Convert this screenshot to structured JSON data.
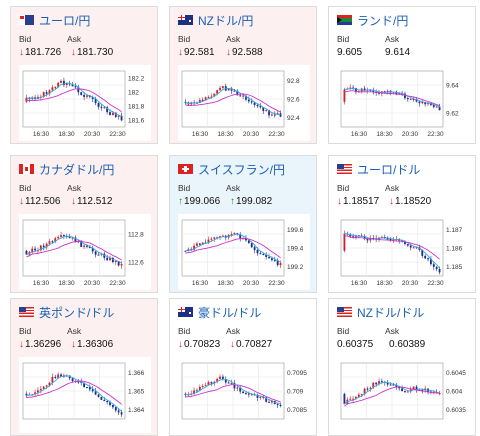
{
  "labels": {
    "bid": "Bid",
    "ask": "Ask"
  },
  "cards": [
    {
      "name": "ユーロ/円",
      "flag": "eu",
      "trend": "down",
      "dir": "down",
      "bid": "181.726",
      "ask": "181.730",
      "yticks": [
        "182.2",
        "182",
        "181.8",
        "181.6"
      ],
      "xticks": [
        "16:30",
        "18:30",
        "20:30",
        "22:30"
      ]
    },
    {
      "name": "NZドル/円",
      "flag": "nz",
      "trend": "down",
      "dir": "down",
      "bid": "92.581",
      "ask": "92.588",
      "yticks": [
        "92.8",
        "92.6",
        "92.4"
      ],
      "xticks": [
        "16:30",
        "18:30",
        "20:30",
        "22:30"
      ]
    },
    {
      "name": "ランド/円",
      "flag": "za",
      "trend": "flat",
      "dir": "none",
      "bid": "9.605",
      "ask": "9.614",
      "yticks": [
        "9.64",
        "9.62"
      ],
      "xticks": [
        "16:30",
        "18:30",
        "20:30",
        "22:30"
      ]
    },
    {
      "name": "カナダドル/円",
      "flag": "ca",
      "trend": "down",
      "dir": "down",
      "bid": "112.506",
      "ask": "112.512",
      "yticks": [
        "112.8",
        "112.6"
      ],
      "xticks": [
        "16:30",
        "18:30",
        "20:30",
        "22:30"
      ]
    },
    {
      "name": "スイスフラン/円",
      "flag": "ch",
      "trend": "up",
      "dir": "up",
      "bid": "199.066",
      "ask": "199.082",
      "yticks": [
        "199.6",
        "199.4",
        "199.2"
      ],
      "xticks": [
        "16:30",
        "18:30",
        "20:30",
        "22:30"
      ]
    },
    {
      "name": "ユーロ/ドル",
      "flag": "us",
      "trend": "flat",
      "dir": "down",
      "bid": "1.18517",
      "ask": "1.18520",
      "yticks": [
        "1.187",
        "1.186",
        "1.185"
      ],
      "xticks": [
        "16:30",
        "18:30",
        "20:30",
        "22:30"
      ]
    },
    {
      "name": "英ポンド/ドル",
      "flag": "us",
      "trend": "down",
      "dir": "down",
      "bid": "1.36296",
      "ask": "1.36306",
      "yticks": [
        "1.366",
        "1.365",
        "1.364"
      ],
      "xticks": []
    },
    {
      "name": "豪ドル/ドル",
      "flag": "au",
      "trend": "flat",
      "dir": "down",
      "bid": "0.70823",
      "ask": "0.70827",
      "yticks": [
        "0.7095",
        "0.709",
        "0.7085"
      ],
      "xticks": []
    },
    {
      "name": "NZドル/ドル",
      "flag": "us",
      "trend": "flat",
      "dir": "none",
      "bid": "0.60375",
      "ask": "0.60389",
      "yticks": [
        "0.6045",
        "0.604",
        "0.6035"
      ],
      "xticks": []
    }
  ],
  "colors": {
    "bull": "#d0202a",
    "bear": "#1c2f8c",
    "ma_fast": "#33aadd",
    "ma_slow": "#cc33cc",
    "down_bg": "#fdf0f0",
    "up_bg": "#eaf4fb",
    "title": "#1a5fb4"
  }
}
